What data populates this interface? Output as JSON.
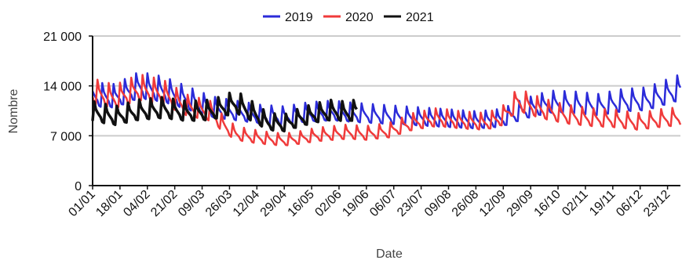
{
  "chart_data": {
    "type": "line",
    "title": "",
    "xlabel": "Date",
    "ylabel": "Nombre",
    "ylim": [
      0,
      21000
    ],
    "xlim": [
      1,
      366
    ],
    "y_ticks": [
      0,
      7000,
      14000,
      21000
    ],
    "y_tick_labels": [
      "0",
      "7 000",
      "14 000",
      "21 000"
    ],
    "x_tick_days": [
      1,
      18,
      35,
      52,
      69,
      86,
      103,
      120,
      137,
      154,
      171,
      188,
      205,
      222,
      239,
      256,
      273,
      290,
      307,
      324,
      341,
      358
    ],
    "x_tick_labels": [
      "01/01",
      "18/01",
      "04/02",
      "21/02",
      "09/03",
      "26/03",
      "12/04",
      "29/04",
      "16/05",
      "02/06",
      "19/06",
      "06/07",
      "23/07",
      "09/08",
      "26/08",
      "12/09",
      "29/09",
      "16/10",
      "02/11",
      "19/11",
      "06/12",
      "23/12"
    ],
    "grid": "horizontal",
    "legend": "top-center",
    "series": [
      {
        "name": "2019",
        "color": "#2b2bd9",
        "x_day": [
          1,
          15,
          30,
          45,
          60,
          75,
          90,
          105,
          120,
          135,
          150,
          165,
          180,
          195,
          210,
          225,
          240,
          255,
          270,
          285,
          300,
          315,
          330,
          345,
          366
        ],
        "y": [
          12500,
          12300,
          13800,
          13200,
          12000,
          10800,
          10300,
          9800,
          9600,
          10100,
          10300,
          10000,
          9800,
          9600,
          9400,
          9200,
          9000,
          9300,
          10600,
          11500,
          11400,
          11100,
          11700,
          11900,
          13500
        ]
      },
      {
        "name": "2020",
        "color": "#f03a3a",
        "x_day": [
          1,
          15,
          30,
          45,
          60,
          75,
          82,
          90,
          100,
          110,
          120,
          130,
          140,
          150,
          160,
          170,
          185,
          200,
          215,
          230,
          245,
          255,
          265,
          280,
          295,
          310,
          325,
          340,
          355,
          366
        ],
        "y": [
          13000,
          12200,
          13500,
          12800,
          11000,
          10200,
          8500,
          7200,
          6800,
          6500,
          6300,
          6600,
          7000,
          7200,
          7400,
          7200,
          7600,
          8800,
          9400,
          9000,
          8800,
          9500,
          11800,
          10600,
          9800,
          9400,
          9200,
          8800,
          9300,
          9500
        ]
      },
      {
        "name": "2021",
        "color": "#111111",
        "x_day": [
          1,
          15,
          30,
          45,
          60,
          75,
          90,
          100,
          110,
          120,
          130,
          140,
          150,
          160,
          165
        ],
        "y": [
          10200,
          9600,
          10400,
          10700,
          10200,
          10400,
          11500,
          10200,
          8800,
          8600,
          9400,
          10000,
          10400,
          10100,
          10500
        ]
      }
    ]
  }
}
